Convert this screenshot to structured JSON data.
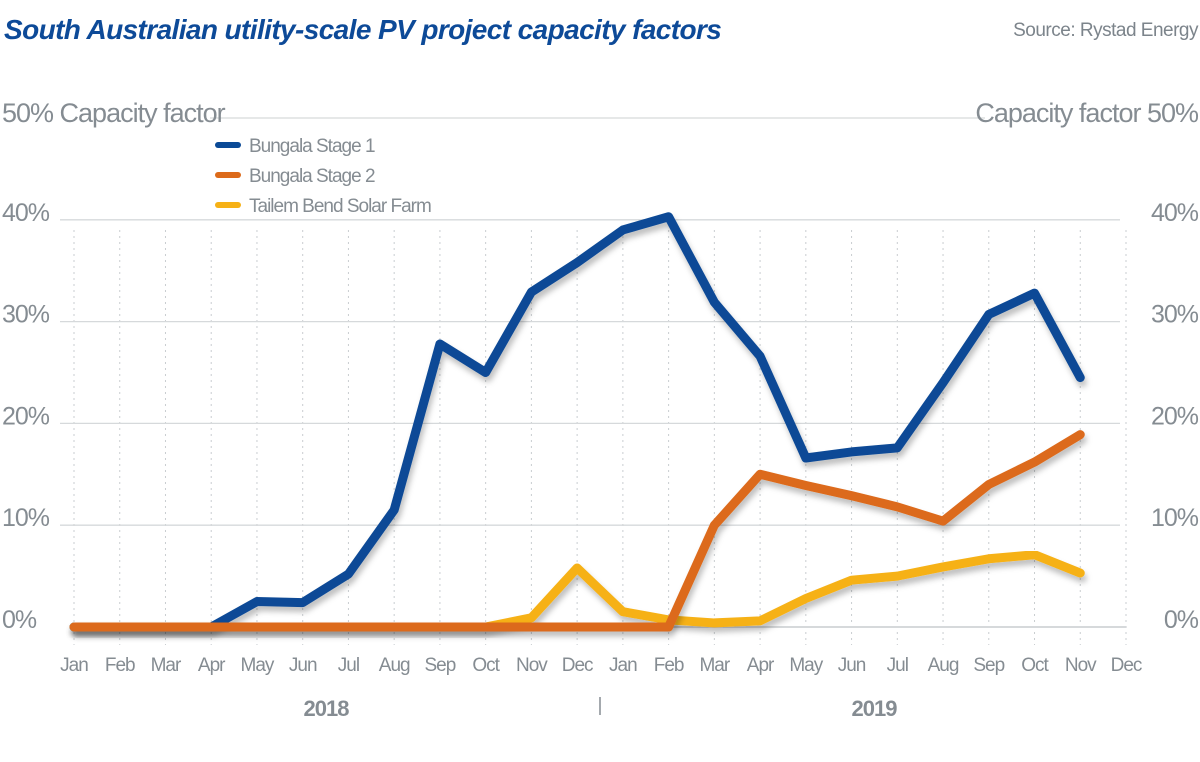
{
  "chart_data": {
    "type": "line",
    "title": "South Australian utility-scale PV project capacity factors",
    "source": "Source: Rystad Energy",
    "ylabel_left": "Capacity factor",
    "ylabel_right": "Capacity factor",
    "ylim": [
      0,
      50
    ],
    "yticks": [
      "0%",
      "10%",
      "20%",
      "30%",
      "40%",
      "50%"
    ],
    "ytick_values": [
      0,
      10,
      20,
      30,
      40,
      50
    ],
    "categories": [
      "Jan",
      "Feb",
      "Mar",
      "Apr",
      "May",
      "Jun",
      "Jul",
      "Aug",
      "Sep",
      "Oct",
      "Nov",
      "Dec",
      "Jan",
      "Feb",
      "Mar",
      "Apr",
      "May",
      "Jun",
      "Jul",
      "Aug",
      "Sep",
      "Oct",
      "Nov",
      "Dec"
    ],
    "year_labels": [
      "2018",
      "2019"
    ],
    "grid": true,
    "legend_position": "top-left",
    "series": [
      {
        "name": "Bungala Stage 1",
        "color": "#0b4a96",
        "values": [
          0,
          0,
          0,
          0,
          2.5,
          2.4,
          5.2,
          11.5,
          27.8,
          25,
          32.9,
          35.8,
          39,
          40.3,
          31.9,
          26.6,
          16.6,
          17.2,
          17.6,
          24,
          30.7,
          32.8,
          24.5,
          null
        ]
      },
      {
        "name": "Bungala Stage 2",
        "color": "#dc6a1a",
        "values": [
          0,
          0,
          0,
          0,
          0,
          0,
          0,
          0,
          0,
          0,
          0,
          0,
          0,
          0,
          10,
          15,
          13.9,
          12.9,
          11.8,
          10.4,
          14,
          16.2,
          18.9,
          null
        ]
      },
      {
        "name": "Tailem Bend Solar Farm",
        "color": "#f6b116",
        "values": [
          0,
          0,
          0,
          0,
          0,
          0,
          0,
          0,
          0,
          0,
          0.9,
          5.8,
          1.5,
          0.7,
          0.4,
          0.6,
          2.8,
          4.6,
          5,
          5.9,
          6.7,
          7.1,
          5.3,
          null
        ]
      }
    ]
  }
}
